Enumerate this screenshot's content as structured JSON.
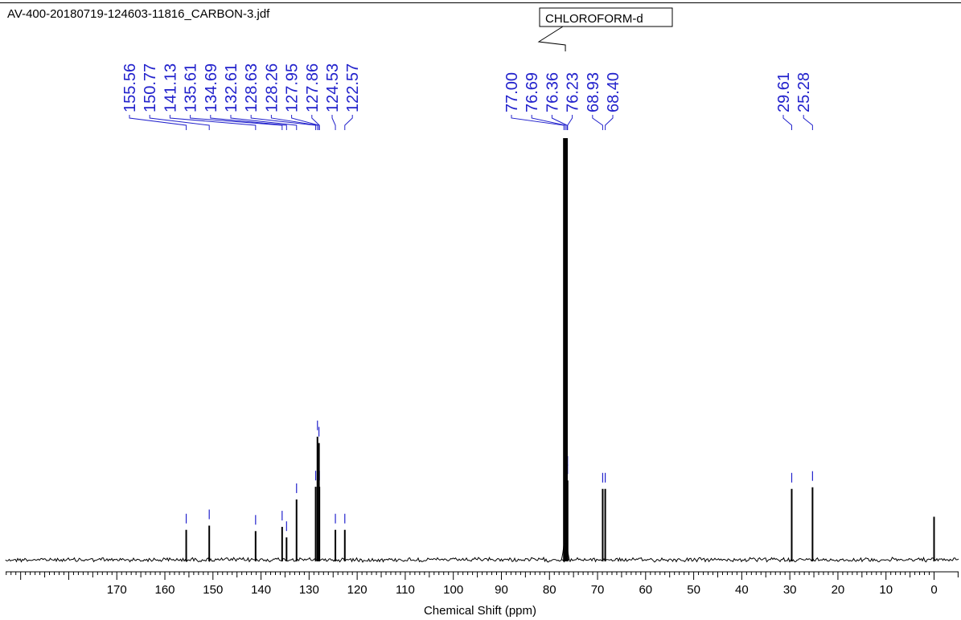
{
  "header": {
    "file_title": "AV-400-20180719-124603-11816_CARBON-3.jdf"
  },
  "chart_data": {
    "type": "line",
    "title": "",
    "xlabel": "Chemical Shift (ppm)",
    "ylabel": "",
    "xlim": [
      178,
      -5
    ],
    "x_reversed": true,
    "grid": false,
    "x_ticks": [
      170,
      160,
      150,
      140,
      130,
      120,
      110,
      100,
      90,
      80,
      70,
      60,
      50,
      40,
      30,
      20,
      10,
      0
    ],
    "x_tick_labels": [
      "170",
      "160",
      "150",
      "140",
      "130",
      "120",
      "110",
      "100",
      "90",
      "80",
      "70",
      "60",
      "50",
      "40",
      "30",
      "20",
      "10",
      "0"
    ],
    "solvent_annotation": {
      "text": "CHLOROFORM-d",
      "ppm": 76.69
    },
    "peak_labels": [
      "155.56",
      "150.77",
      "141.13",
      "135.61",
      "134.69",
      "132.61",
      "128.63",
      "128.26",
      "127.95",
      "127.86",
      "124.53",
      "122.57",
      "77.00",
      "76.69",
      "76.36",
      "76.23",
      "68.93",
      "68.40",
      "29.61",
      "25.28"
    ],
    "peaks": [
      {
        "ppm": 155.56,
        "height": 0.071
      },
      {
        "ppm": 150.77,
        "height": 0.081
      },
      {
        "ppm": 141.13,
        "height": 0.068
      },
      {
        "ppm": 135.61,
        "height": 0.078
      },
      {
        "ppm": 134.69,
        "height": 0.053
      },
      {
        "ppm": 132.61,
        "height": 0.143
      },
      {
        "ppm": 128.63,
        "height": 0.173
      },
      {
        "ppm": 128.26,
        "height": 0.292
      },
      {
        "ppm": 127.95,
        "height": 0.277
      },
      {
        "ppm": 127.86,
        "height": 0.173
      },
      {
        "ppm": 124.53,
        "height": 0.071
      },
      {
        "ppm": 122.57,
        "height": 0.071
      },
      {
        "ppm": 77.0,
        "height": 1.0
      },
      {
        "ppm": 76.69,
        "height": 1.0
      },
      {
        "ppm": 76.36,
        "height": 1.0
      },
      {
        "ppm": 76.23,
        "height": 0.188
      },
      {
        "ppm": 68.93,
        "height": 0.168
      },
      {
        "ppm": 68.4,
        "height": 0.168
      },
      {
        "ppm": 29.61,
        "height": 0.168
      },
      {
        "ppm": 25.28,
        "height": 0.172
      },
      {
        "ppm": 0.0,
        "height": 0.102
      }
    ]
  }
}
